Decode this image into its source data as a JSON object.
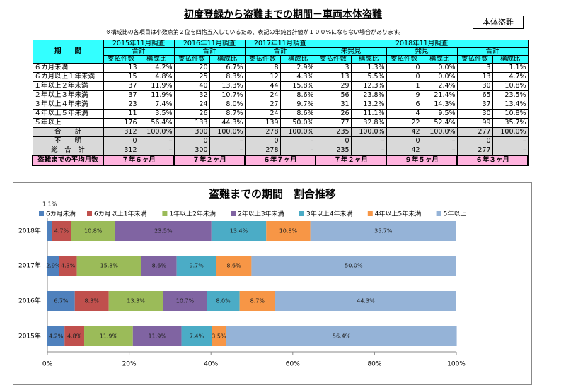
{
  "header": {
    "title": "初度登録から盗難までの期間－車両本体盗難",
    "badge": "本体盗難",
    "note": "※構成比の各項目は小数点第２位を四捨五入しているため、表記の単純合計値が１００%にならない場合があります。"
  },
  "table": {
    "period": "期　　間",
    "years": [
      "2015年11月調査",
      "2016年11月調査",
      "2017年11月調査",
      "2018年11月調査"
    ],
    "groups": [
      "合計",
      "合計",
      "合計",
      "未発見",
      "発見",
      "合計"
    ],
    "columns": [
      "支払件数",
      "構成比",
      "支払件数",
      "構成比",
      "支払件数",
      "構成比",
      "支払件数",
      "構成比",
      "支払件数",
      "構成比",
      "支払件数",
      "構成比"
    ],
    "rows": [
      {
        "label": "６カ月未満",
        "cells": [
          "13",
          "4.2%",
          "20",
          "6.7%",
          "8",
          "2.9%",
          "3",
          "1.3%",
          "0",
          "0.0%",
          "3",
          "1.1%"
        ]
      },
      {
        "label": "６カ月以上１年未満",
        "cells": [
          "15",
          "4.8%",
          "25",
          "8.3%",
          "12",
          "4.3%",
          "13",
          "5.5%",
          "0",
          "0.0%",
          "13",
          "4.7%"
        ]
      },
      {
        "label": "１年以上２年未満",
        "cells": [
          "37",
          "11.9%",
          "40",
          "13.3%",
          "44",
          "15.8%",
          "29",
          "12.3%",
          "1",
          "2.4%",
          "30",
          "10.8%"
        ]
      },
      {
        "label": "２年以上３年未満",
        "cells": [
          "37",
          "11.9%",
          "32",
          "10.7%",
          "24",
          "8.6%",
          "56",
          "23.8%",
          "9",
          "21.4%",
          "65",
          "23.5%"
        ]
      },
      {
        "label": "３年以上４年未満",
        "cells": [
          "23",
          "7.4%",
          "24",
          "8.0%",
          "27",
          "9.7%",
          "31",
          "13.2%",
          "6",
          "14.3%",
          "37",
          "13.4%"
        ]
      },
      {
        "label": "４年以上５年未満",
        "cells": [
          "11",
          "3.5%",
          "26",
          "8.7%",
          "24",
          "8.6%",
          "26",
          "11.1%",
          "4",
          "9.5%",
          "30",
          "10.8%"
        ]
      },
      {
        "label": "５年以上",
        "cells": [
          "176",
          "56.4%",
          "133",
          "44.3%",
          "139",
          "50.0%",
          "77",
          "32.8%",
          "22",
          "52.4%",
          "99",
          "35.7%"
        ]
      },
      {
        "label": "合　　計",
        "cells": [
          "312",
          "100.0%",
          "300",
          "100.0%",
          "278",
          "100.0%",
          "235",
          "100.0%",
          "42",
          "100.0%",
          "277",
          "100.0%"
        ]
      },
      {
        "label": "不　　明",
        "cells": [
          "0",
          "–",
          "0",
          "–",
          "0",
          "–",
          "0",
          "–",
          "0",
          "–",
          "0",
          "–"
        ]
      },
      {
        "label": "総　合　計",
        "cells": [
          "312",
          "–",
          "300",
          "–",
          "278",
          "–",
          "235",
          "–",
          "42",
          "–",
          "277",
          "–"
        ]
      }
    ],
    "average": {
      "label": "盗難までの平均月数",
      "values": [
        "７年６ヶ月",
        "７年２ヶ月",
        "６年７ヶ月",
        "７年２ヶ月",
        "９年５ヶ月",
        "６年３ヶ月"
      ]
    }
  },
  "chart_data": {
    "type": "stacked-bar-horizontal",
    "title": "盗難までの期間　割合推移",
    "categories": [
      "2018年",
      "2017年",
      "2016年",
      "2015年"
    ],
    "series": [
      {
        "name": "6カ月未満",
        "color": "#4f81bd",
        "values": [
          1.1,
          2.9,
          6.7,
          4.2
        ],
        "value_labels": [
          "1.1%",
          "2.9%",
          "6.7%",
          "4.2%"
        ]
      },
      {
        "name": "6カ月以上1年未満",
        "color": "#c0504d",
        "values": [
          4.7,
          4.3,
          8.3,
          4.8
        ],
        "value_labels": [
          "4.7%",
          "4.3%",
          "8.3%",
          "4.8%"
        ]
      },
      {
        "name": "1年以上2年未満",
        "color": "#9bbb59",
        "values": [
          10.8,
          15.8,
          13.3,
          11.9
        ],
        "value_labels": [
          "10.8%",
          "15.8%",
          "13.3%",
          "11.9%"
        ]
      },
      {
        "name": "2年以上3年未満",
        "color": "#8064a2",
        "values": [
          23.5,
          8.6,
          10.7,
          11.9
        ],
        "value_labels": [
          "23.5%",
          "8.6%",
          "10.7%",
          "11.9%"
        ]
      },
      {
        "name": "3年以上4年未満",
        "color": "#4bacc6",
        "values": [
          13.4,
          9.7,
          8.0,
          7.4
        ],
        "value_labels": [
          "13.4%",
          "9.7%",
          "8.0%",
          "7.4%"
        ]
      },
      {
        "name": "4年以上5年未満",
        "color": "#f79646",
        "values": [
          10.8,
          8.6,
          8.7,
          3.5
        ],
        "value_labels": [
          "10.8%",
          "8.6%",
          "8.7%",
          "3.5%"
        ]
      },
      {
        "name": "5年以上",
        "color": "#95b3d7",
        "values": [
          35.7,
          50.0,
          44.3,
          56.4
        ],
        "value_labels": [
          "35.7%",
          "50.0%",
          "44.3%",
          "56.4%"
        ]
      }
    ],
    "xlim": [
      0,
      100
    ],
    "xticks": [
      {
        "value": 0,
        "label": "0%"
      },
      {
        "value": 20,
        "label": "20%"
      },
      {
        "value": 40,
        "label": "40%"
      },
      {
        "value": 60,
        "label": "60%"
      },
      {
        "value": 80,
        "label": "80%"
      },
      {
        "value": 100,
        "label": "100%"
      }
    ]
  }
}
